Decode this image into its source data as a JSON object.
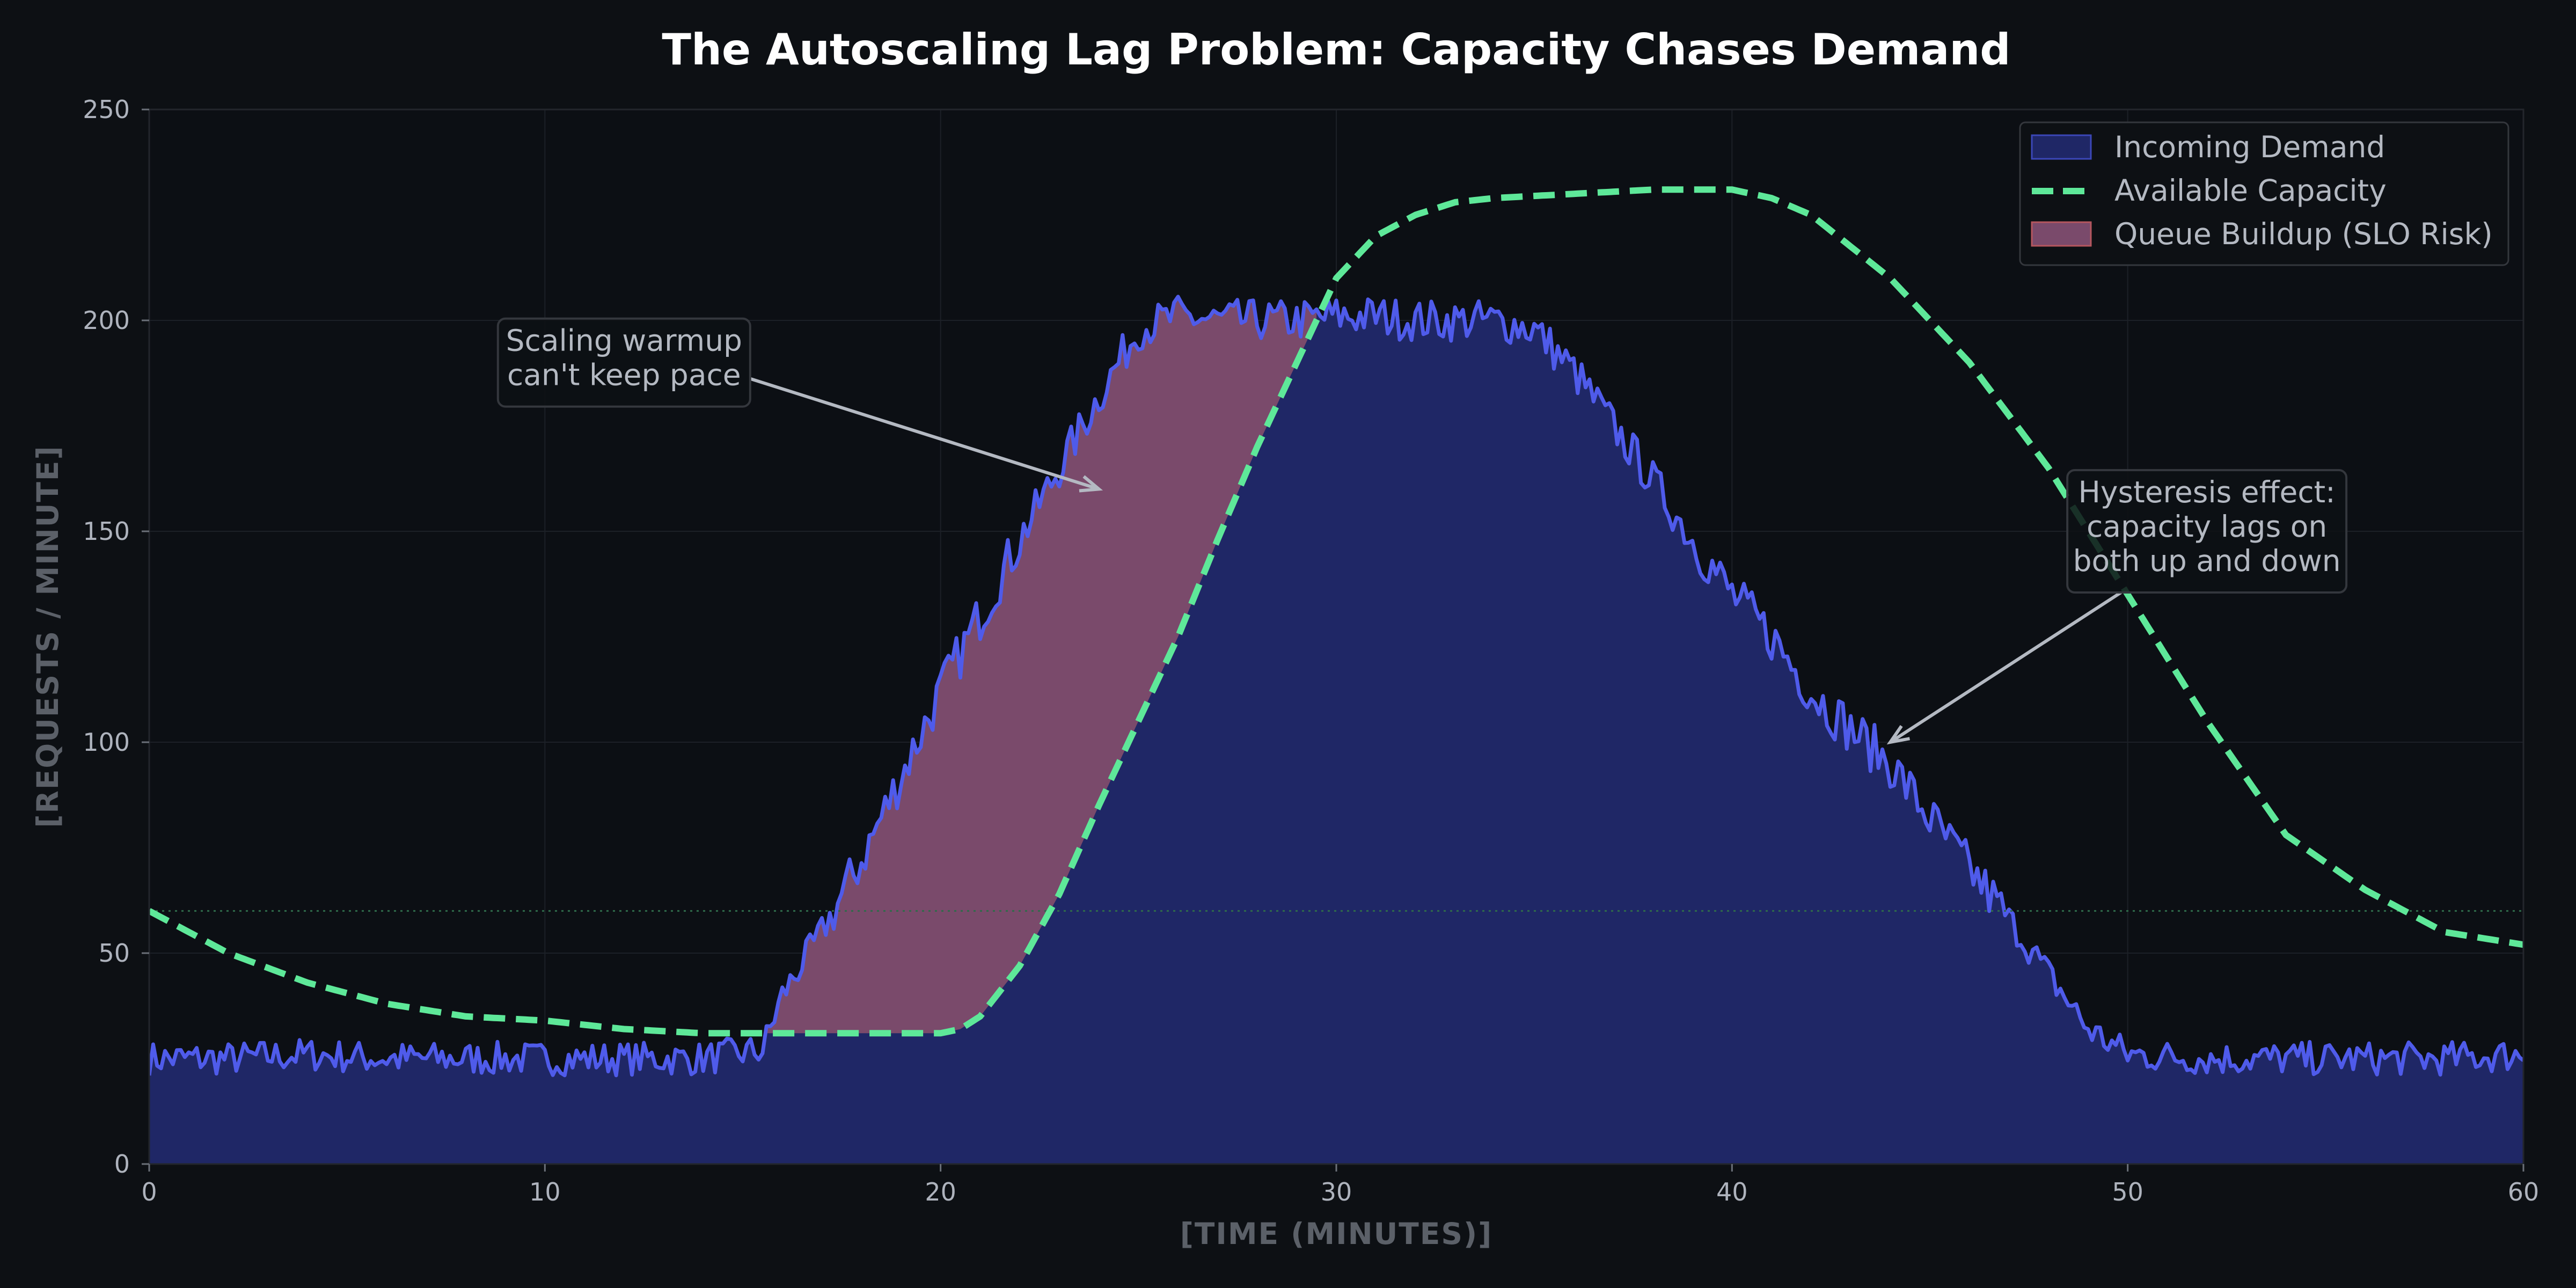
{
  "chart_data": {
    "type": "area",
    "title": "The Autoscaling Lag Problem: Capacity Chases Demand",
    "xlabel": "[TIME (MINUTES)]",
    "ylabel": "[REQUESTS / MINUTE]",
    "xlim": [
      0,
      60
    ],
    "ylim": [
      0,
      250
    ],
    "xticks": [
      0,
      10,
      20,
      30,
      40,
      50,
      60
    ],
    "yticks": [
      0,
      50,
      100,
      150,
      200,
      250
    ],
    "grid": true,
    "legend_position": "top-right",
    "reference_line": {
      "y": 60,
      "style": "dotted"
    },
    "series": [
      {
        "name": "Incoming Demand",
        "style": "filled-area",
        "color": "#4f5bea",
        "fill": "#1f2766",
        "x": [
          0,
          2,
          4,
          6,
          8,
          10,
          12,
          14,
          15.5,
          16,
          17,
          18,
          19,
          20,
          21,
          22,
          23,
          24,
          25,
          26,
          27,
          28,
          29,
          30,
          31,
          32,
          33,
          34,
          35,
          36,
          37,
          38,
          39,
          40,
          41,
          42,
          43,
          44,
          45,
          46,
          47,
          48,
          49,
          50,
          52,
          54,
          56,
          58,
          60
        ],
        "y": [
          25,
          25,
          26,
          25,
          25,
          25,
          25,
          25,
          27,
          40,
          55,
          72,
          92,
          112,
          130,
          148,
          165,
          182,
          198,
          201,
          200,
          200,
          200,
          201,
          201,
          200,
          200,
          200,
          198,
          188,
          175,
          162,
          148,
          135,
          125,
          112,
          103,
          95,
          82,
          70,
          58,
          45,
          32,
          26,
          25,
          25,
          25,
          25,
          26
        ]
      },
      {
        "name": "Available Capacity",
        "style": "dashed-line",
        "color": "#5ee899",
        "x": [
          0,
          2,
          4,
          6,
          8,
          10,
          12,
          14,
          16,
          18,
          20,
          20.5,
          21,
          22,
          23,
          24,
          25,
          26,
          27,
          28,
          29,
          30,
          31,
          32,
          33,
          34,
          36,
          38,
          40,
          41,
          42,
          44,
          46,
          48,
          50,
          52,
          54,
          56,
          58,
          60
        ],
        "y": [
          60,
          50,
          43,
          38,
          35,
          34,
          32,
          31,
          31,
          31,
          31,
          32,
          35,
          47,
          64,
          85,
          105,
          125,
          148,
          170,
          190,
          210,
          220,
          225,
          228,
          229,
          230,
          231,
          231,
          229,
          225,
          210,
          190,
          165,
          135,
          105,
          78,
          65,
          55,
          52
        ]
      },
      {
        "name": "Queue Buildup (SLO Risk)",
        "style": "fill-between",
        "color": "#7a4a6b",
        "description_of_region": "Incoming Demand above Available Capacity"
      }
    ],
    "annotations": [
      {
        "text": [
          "Scaling warmup",
          "can't keep pace"
        ],
        "points_to": {
          "x": 24,
          "y": 160
        },
        "text_at": {
          "x": 12,
          "y": 190
        }
      },
      {
        "text": [
          "Hysteresis effect:",
          "capacity lags on",
          "both up and down"
        ],
        "points_to": {
          "x": 44,
          "y": 100
        },
        "text_at": {
          "x": 52,
          "y": 150
        }
      }
    ]
  }
}
